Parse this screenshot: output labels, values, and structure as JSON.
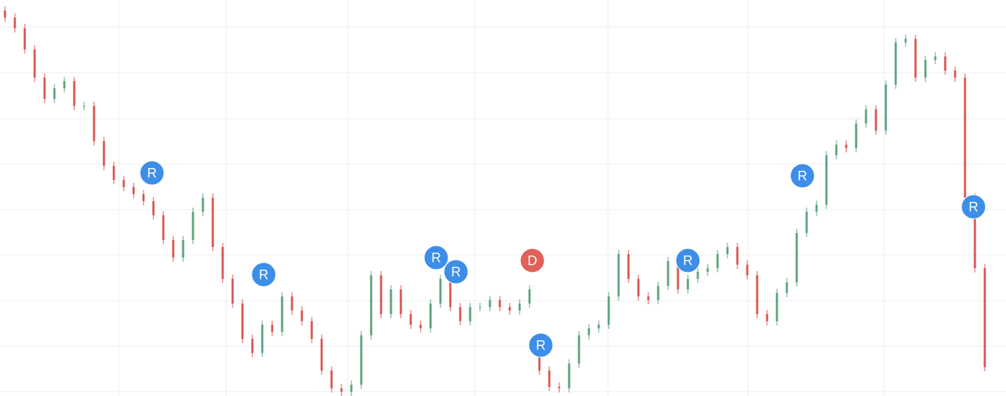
{
  "chart_data": {
    "type": "candlestick",
    "up_color": "#5aa37a",
    "down_color": "#d9534f",
    "ylim": [
      0,
      561
    ],
    "yticks": [
      6,
      71,
      135,
      200,
      264,
      329,
      393,
      458,
      523
    ],
    "grid": true,
    "candles": [
      [
        546,
        552,
        530,
        536
      ],
      [
        536,
        542,
        515,
        521
      ],
      [
        521,
        527,
        485,
        491
      ],
      [
        491,
        497,
        445,
        451
      ],
      [
        451,
        457,
        415,
        421
      ],
      [
        421,
        442,
        415,
        436
      ],
      [
        436,
        452,
        430,
        446
      ],
      [
        446,
        452,
        405,
        411
      ],
      [
        411,
        417,
        405,
        411
      ],
      [
        411,
        417,
        355,
        361
      ],
      [
        361,
        367,
        320,
        326
      ],
      [
        326,
        332,
        300,
        306
      ],
      [
        306,
        312,
        290,
        296
      ],
      [
        296,
        302,
        280,
        286
      ],
      [
        286,
        292,
        270,
        276
      ],
      [
        276,
        282,
        250,
        256
      ],
      [
        256,
        262,
        215,
        221
      ],
      [
        221,
        227,
        190,
        196
      ],
      [
        196,
        227,
        190,
        221
      ],
      [
        221,
        267,
        215,
        261
      ],
      [
        261,
        287,
        255,
        281
      ],
      [
        281,
        287,
        205,
        211
      ],
      [
        211,
        217,
        160,
        166
      ],
      [
        166,
        172,
        125,
        131
      ],
      [
        131,
        137,
        75,
        81
      ],
      [
        81,
        87,
        55,
        61
      ],
      [
        61,
        107,
        55,
        101
      ],
      [
        101,
        107,
        85,
        91
      ],
      [
        91,
        147,
        85,
        141
      ],
      [
        141,
        147,
        115,
        121
      ],
      [
        121,
        127,
        100,
        106
      ],
      [
        106,
        112,
        75,
        81
      ],
      [
        81,
        87,
        30,
        36
      ],
      [
        36,
        42,
        5,
        11
      ],
      [
        11,
        17,
        0,
        6
      ],
      [
        6,
        22,
        0,
        16
      ],
      [
        16,
        92,
        10,
        86
      ],
      [
        86,
        177,
        80,
        171
      ],
      [
        171,
        177,
        110,
        116
      ],
      [
        116,
        157,
        110,
        151
      ],
      [
        151,
        157,
        110,
        116
      ],
      [
        116,
        122,
        95,
        101
      ],
      [
        101,
        107,
        90,
        96
      ],
      [
        96,
        137,
        90,
        131
      ],
      [
        131,
        172,
        125,
        166
      ],
      [
        166,
        172,
        120,
        126
      ],
      [
        126,
        132,
        100,
        106
      ],
      [
        106,
        132,
        100,
        126
      ],
      [
        126,
        132,
        120,
        126
      ],
      [
        126,
        142,
        120,
        136
      ],
      [
        136,
        142,
        120,
        126
      ],
      [
        126,
        132,
        115,
        121
      ],
      [
        121,
        137,
        115,
        131
      ],
      [
        131,
        157,
        125,
        151
      ],
      [
        56,
        62,
        30,
        36
      ],
      [
        36,
        42,
        7,
        13
      ],
      [
        13,
        19,
        5,
        11
      ],
      [
        11,
        52,
        5,
        46
      ],
      [
        46,
        92,
        40,
        86
      ],
      [
        86,
        102,
        80,
        96
      ],
      [
        96,
        107,
        90,
        101
      ],
      [
        101,
        147,
        95,
        141
      ],
      [
        141,
        207,
        135,
        201
      ],
      [
        201,
        207,
        160,
        166
      ],
      [
        166,
        172,
        135,
        141
      ],
      [
        141,
        147,
        130,
        136
      ],
      [
        136,
        162,
        130,
        156
      ],
      [
        156,
        197,
        150,
        191
      ],
      [
        191,
        197,
        145,
        151
      ],
      [
        151,
        172,
        145,
        166
      ],
      [
        166,
        182,
        160,
        176
      ],
      [
        176,
        187,
        170,
        181
      ],
      [
        181,
        207,
        175,
        201
      ],
      [
        201,
        217,
        195,
        211
      ],
      [
        211,
        217,
        180,
        186
      ],
      [
        186,
        192,
        165,
        171
      ],
      [
        171,
        177,
        110,
        116
      ],
      [
        116,
        122,
        100,
        106
      ],
      [
        106,
        152,
        100,
        146
      ],
      [
        146,
        167,
        140,
        161
      ],
      [
        161,
        237,
        155,
        231
      ],
      [
        231,
        267,
        225,
        261
      ],
      [
        261,
        277,
        255,
        271
      ],
      [
        271,
        347,
        265,
        341
      ],
      [
        341,
        362,
        335,
        356
      ],
      [
        356,
        362,
        345,
        351
      ],
      [
        351,
        392,
        345,
        386
      ],
      [
        386,
        412,
        380,
        406
      ],
      [
        406,
        412,
        370,
        376
      ],
      [
        376,
        447,
        370,
        441
      ],
      [
        441,
        507,
        435,
        501
      ],
      [
        501,
        512,
        495,
        506
      ],
      [
        506,
        512,
        445,
        451
      ],
      [
        451,
        482,
        445,
        476
      ],
      [
        476,
        487,
        470,
        481
      ],
      [
        481,
        487,
        455,
        461
      ],
      [
        461,
        467,
        445,
        451
      ],
      [
        451,
        457,
        275,
        281
      ],
      [
        281,
        287,
        175,
        181
      ],
      [
        181,
        187,
        35,
        41
      ]
    ],
    "markers": [
      {
        "label": "R",
        "color": "#3d8ee8"
      },
      {
        "label": "R",
        "color": "#3d8ee8"
      },
      {
        "label": "R",
        "color": "#3d8ee8"
      },
      {
        "label": "R",
        "color": "#3d8ee8"
      },
      {
        "label": "D",
        "color": "#e0605a"
      },
      {
        "label": "R",
        "color": "#3d8ee8"
      },
      {
        "label": "R",
        "color": "#3d8ee8"
      },
      {
        "label": "R",
        "color": "#3d8ee8"
      },
      {
        "label": "R",
        "color": "#3d8ee8"
      }
    ]
  }
}
